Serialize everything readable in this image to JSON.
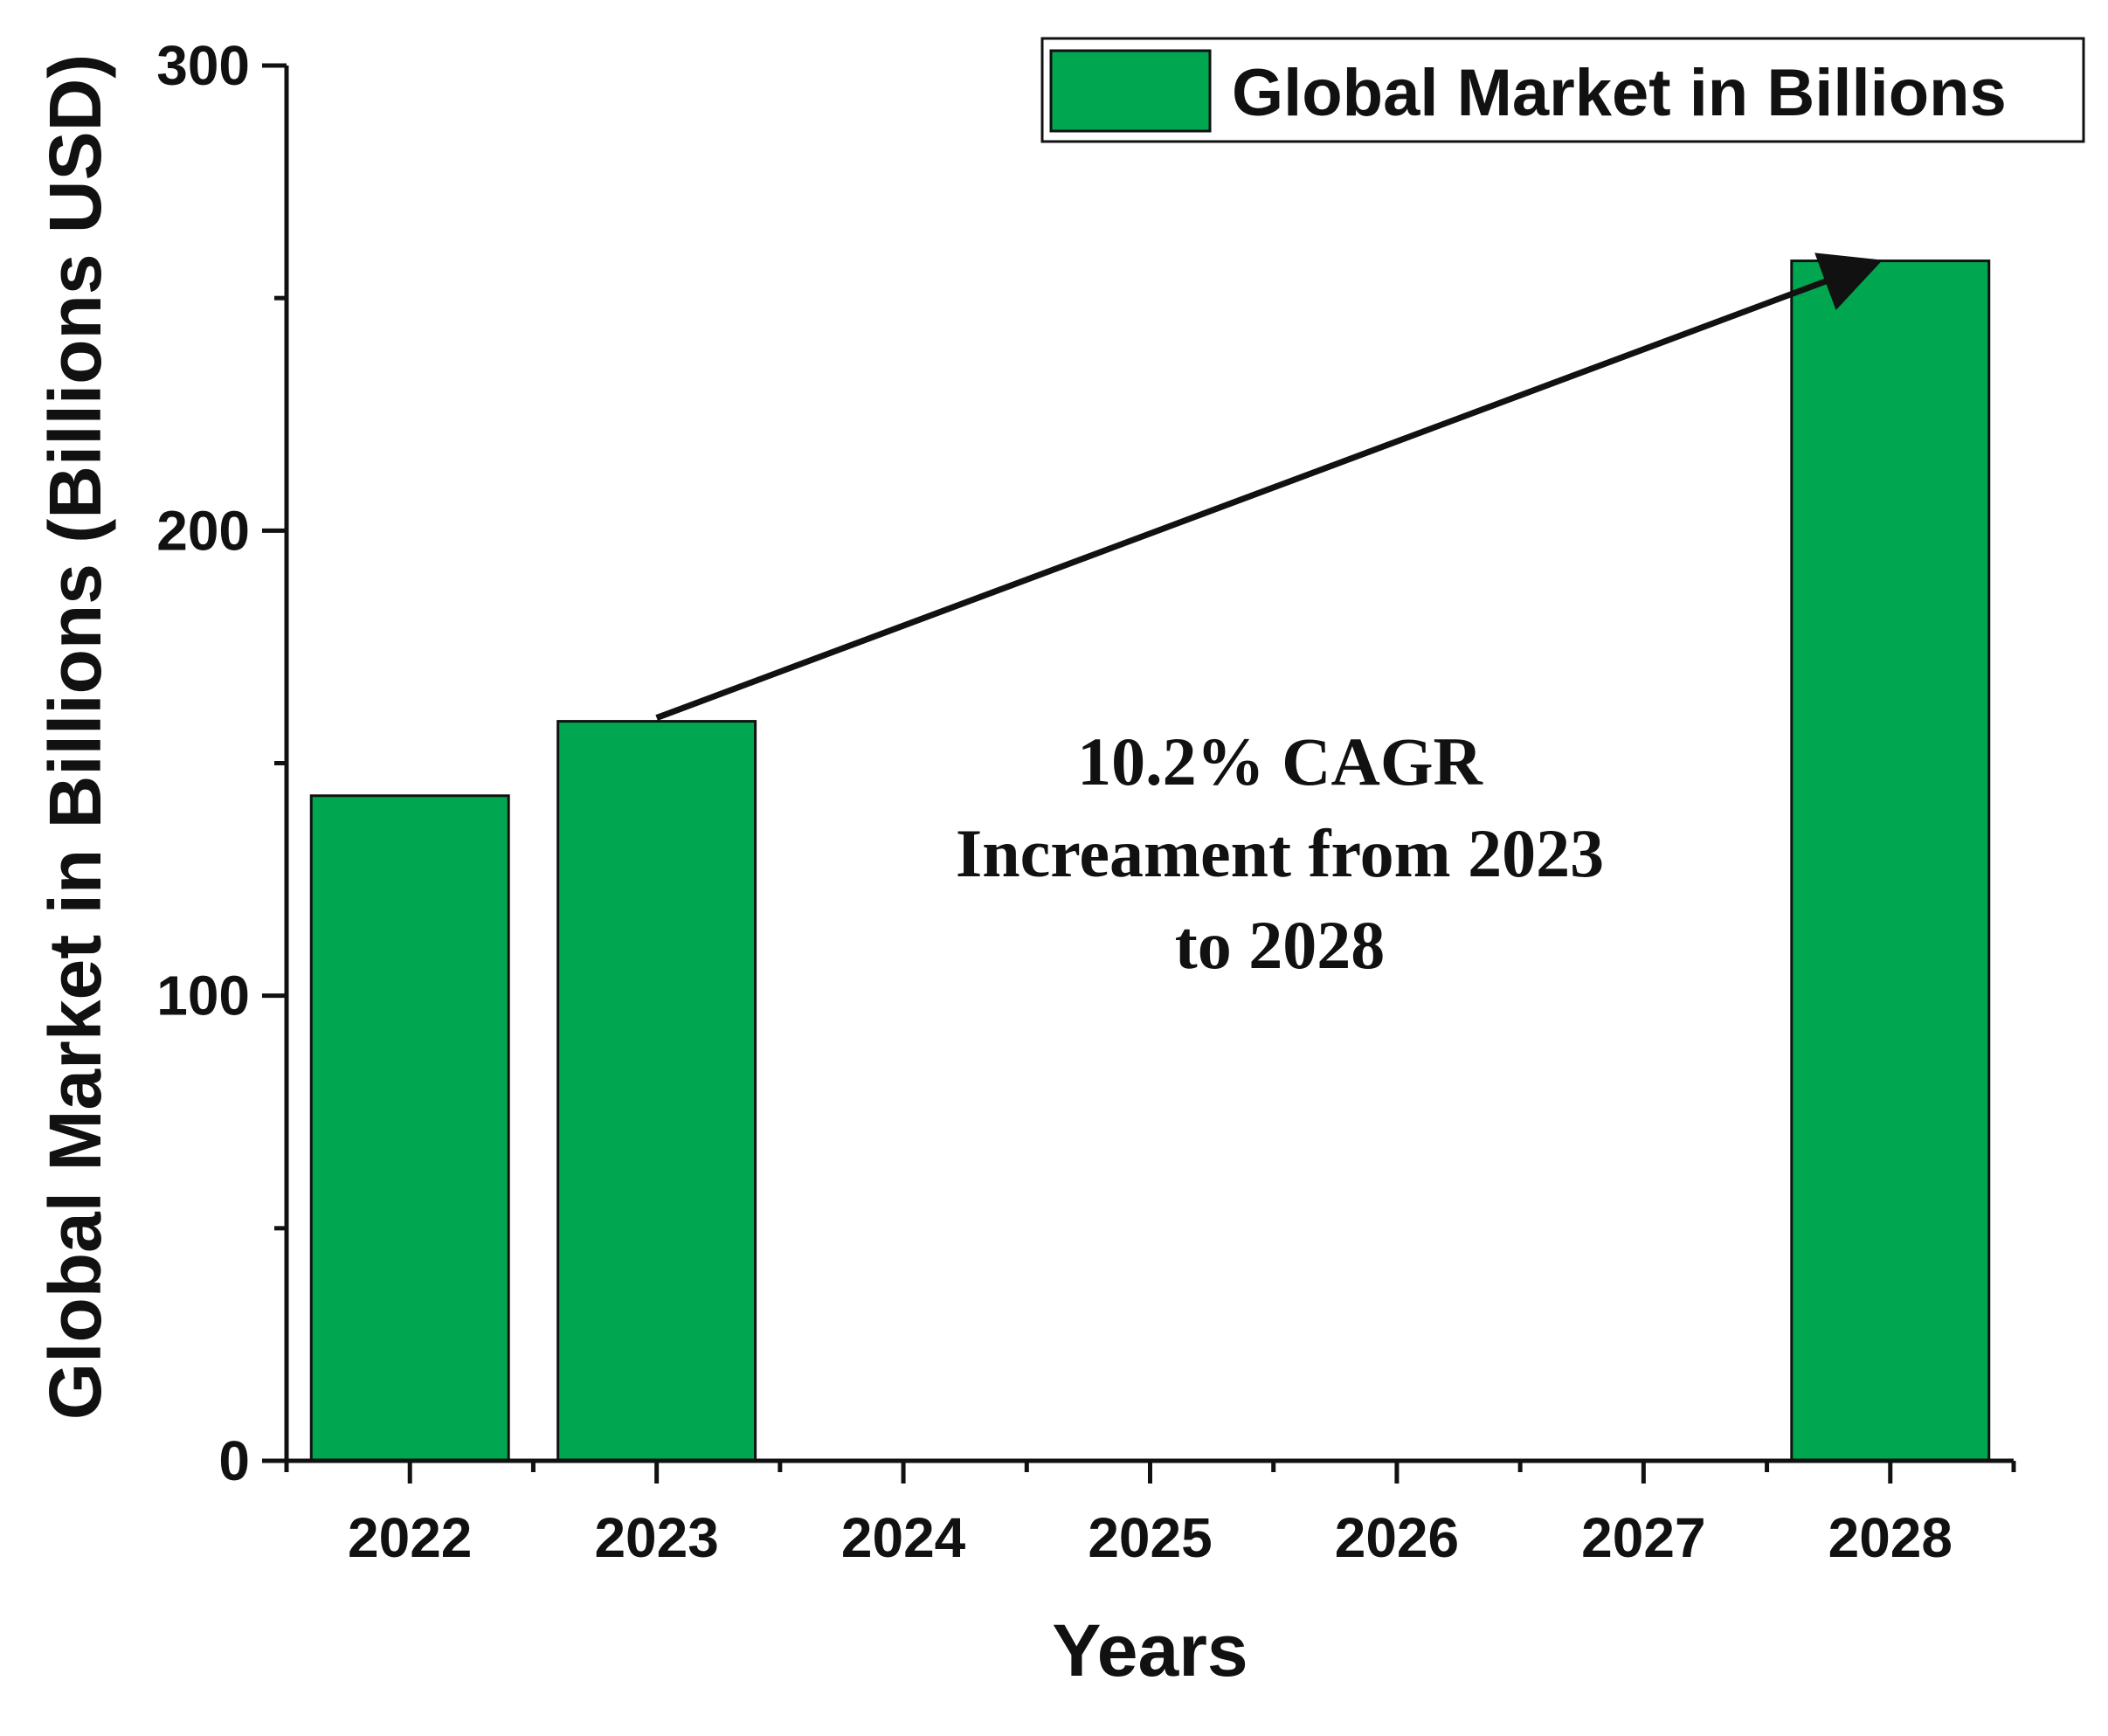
{
  "chart_data": {
    "type": "bar",
    "categories": [
      "2022",
      "2023",
      "2024",
      "2025",
      "2026",
      "2027",
      "2028"
    ],
    "series": [
      {
        "name": "Global Market in Billions",
        "values": [
          143,
          159,
          null,
          null,
          null,
          null,
          258
        ],
        "color": "#00a650"
      }
    ],
    "xlabel": "Years",
    "ylabel": "Global Market in Billions (Billions USD)",
    "ylim": [
      0,
      300
    ],
    "yticks": [
      "0",
      "100",
      "200",
      "300"
    ],
    "y_minor_tick_step": 50,
    "grid": false,
    "legend": {
      "position": "top-right",
      "entries": [
        "Global Market in Billions"
      ]
    },
    "annotation": {
      "lines": [
        "10.2% CAGR",
        "Increament from 2023",
        "to 2028"
      ],
      "arrow_from": "2023",
      "arrow_to": "2028"
    }
  }
}
